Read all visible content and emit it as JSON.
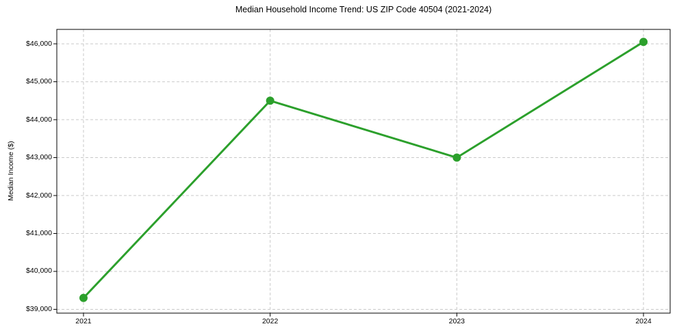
{
  "chart_data": {
    "type": "line",
    "title": "Median Household Income Trend: US ZIP Code 40504 (2021-2024)",
    "xlabel": "",
    "ylabel": "Median Income ($)",
    "categories": [
      "2021",
      "2022",
      "2023",
      "2024"
    ],
    "values": [
      39300,
      44500,
      43000,
      46050
    ],
    "ylim": [
      38900,
      46380
    ],
    "ytick_values": [
      39000,
      40000,
      41000,
      42000,
      43000,
      44000,
      45000,
      46000
    ],
    "ytick_labels": [
      "$39,000",
      "$40,000",
      "$41,000",
      "$42,000",
      "$43,000",
      "$44,000",
      "$45,000",
      "$46,000"
    ],
    "grid": "both",
    "grid_style": "dashed",
    "legend": "none",
    "line_color": "#2ca02c",
    "marker": "circle"
  },
  "colors": {
    "line": "#2ca02c",
    "grid": "#c9c9c9",
    "spine": "#000000",
    "tick": "#000000",
    "background": "#ffffff",
    "text": "#000000"
  }
}
